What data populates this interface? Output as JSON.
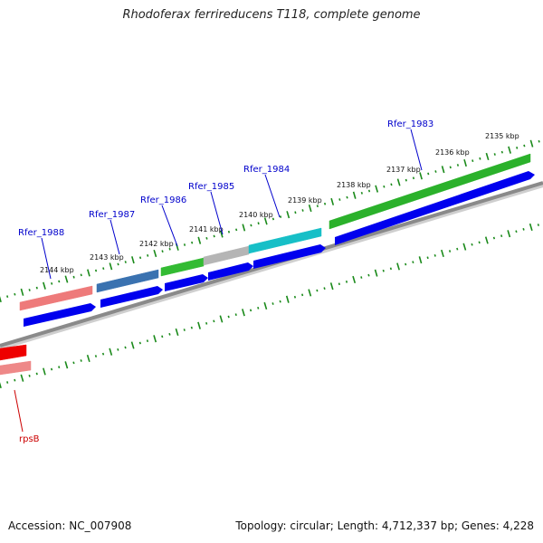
{
  "title": "Rhodoferax ferrireducens T118, complete genome",
  "footer": {
    "accession": "Accession: NC_007908",
    "summary": "Topology: circular; Length: 4,712,337 bp; Genes: 4,228"
  },
  "colors": {
    "backbone": "#8a8a8a",
    "tick": "#1a8a1a",
    "cds": "#0000ee",
    "label_blue": "#0000cc",
    "label_red": "#cc0000"
  },
  "scale_labels": [
    "2144 kbp",
    "2143 kbp",
    "2142 kbp",
    "2141 kbp",
    "2140 kbp",
    "2139 kbp",
    "2138 kbp",
    "2137 kbp",
    "2136 kbp",
    "2135 kbp"
  ],
  "genes_upper": [
    {
      "name": "Rfer_1988",
      "color": "#ee7a7a"
    },
    {
      "name": "Rfer_1987",
      "color": "#3a72b0"
    },
    {
      "name": "Rfer_1986",
      "color": "#33bb33"
    },
    {
      "name": "Rfer_1985",
      "color": "#b5b5b5"
    },
    {
      "name": "Rfer_1984",
      "color": "#17bfc7"
    },
    {
      "name": "Rfer_1983",
      "color": "#2bb12b"
    }
  ],
  "genes_lower": [
    {
      "name": "rpsB",
      "color": "#ee0000"
    }
  ]
}
